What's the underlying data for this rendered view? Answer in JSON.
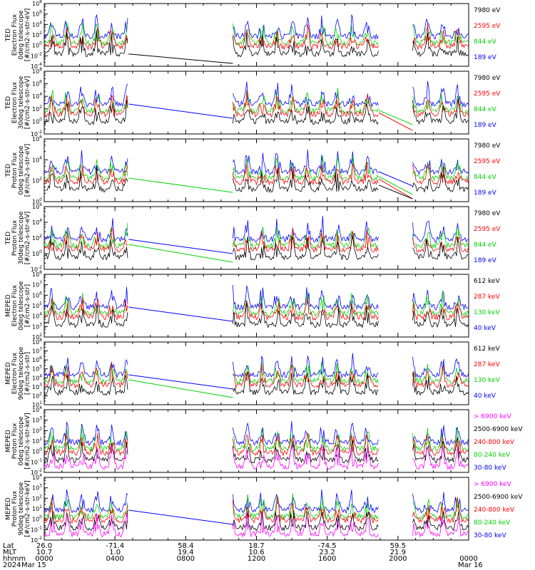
{
  "colors": {
    "black": "#000000",
    "red": "#ff0000",
    "green": "#00d000",
    "blue": "#0000ff",
    "magenta": "#ff00ff"
  },
  "footer": {
    "row_labels": [
      "Lat",
      "MLT",
      "hhmm",
      "2024"
    ],
    "lat": [
      "26.0",
      "-71.4",
      "58.4",
      "18.7",
      "-74.5",
      "59.5"
    ],
    "mlt": [
      "10.7",
      "1.0",
      "19.4",
      "10.6",
      "23.2",
      "21.9"
    ],
    "hhmm": [
      "0000",
      "0400",
      "0800",
      "1200",
      "1600",
      "2000",
      "0000"
    ],
    "dates": [
      "Mar 15",
      "Mar 16"
    ]
  },
  "chart_data": [
    {
      "type": "line",
      "ylabel": [
        "TED",
        "Electron Flux",
        "0deg telescope",
        "[#/cm2-s-str-eV]"
      ],
      "ylog_exponents": [
        -4,
        -2,
        0,
        2,
        4,
        6,
        8
      ],
      "series": [
        {
          "name": "7980 eV",
          "color": "black"
        },
        {
          "name": "2595 eV",
          "color": "red"
        },
        {
          "name": "844 eV",
          "color": "green"
        },
        {
          "name": "189 eV",
          "color": "blue"
        }
      ],
      "gaps": [
        {
          "from": "0446",
          "to": "1040",
          "connect": [
            "black"
          ]
        },
        {
          "from": "1855",
          "to": "2050",
          "connect": []
        }
      ]
    },
    {
      "type": "line",
      "ylabel": [
        "TED",
        "Electron Flux",
        "30deg telescope",
        "[#/cm2-s-str-eV]"
      ],
      "ylog_exponents": [
        -2,
        0,
        2,
        4,
        6,
        8
      ],
      "series": [
        {
          "name": "7980 eV",
          "color": "black"
        },
        {
          "name": "2595 eV",
          "color": "red"
        },
        {
          "name": "844 eV",
          "color": "green"
        },
        {
          "name": "189 eV",
          "color": "blue"
        }
      ],
      "gaps": [
        {
          "from": "0446",
          "to": "1040",
          "connect": [
            "blue"
          ]
        },
        {
          "from": "1855",
          "to": "2050",
          "connect": [
            "green",
            "red"
          ]
        }
      ]
    },
    {
      "type": "line",
      "ylabel": [
        "TED",
        "Proton Flux",
        "0deg telescope",
        "[#/cm2-s-str-eV]"
      ],
      "ylog_exponents": [
        0,
        2,
        4,
        6
      ],
      "series": [
        {
          "name": "7980 eV",
          "color": "black"
        },
        {
          "name": "2595 eV",
          "color": "red"
        },
        {
          "name": "844 eV",
          "color": "green"
        },
        {
          "name": "189 eV",
          "color": "blue"
        }
      ],
      "gaps": [
        {
          "from": "0446",
          "to": "1040",
          "connect": [
            "green"
          ]
        },
        {
          "from": "1855",
          "to": "2050",
          "connect": [
            "blue",
            "green",
            "red",
            "black"
          ]
        }
      ]
    },
    {
      "type": "line",
      "ylabel": [
        "TED",
        "Proton Flux",
        "30deg telescope",
        "[#/cm2-s-str-eV]"
      ],
      "ylog_exponents": [
        -2,
        0,
        2,
        4,
        6
      ],
      "series": [
        {
          "name": "7980 eV",
          "color": "black"
        },
        {
          "name": "2595 eV",
          "color": "red"
        },
        {
          "name": "844 eV",
          "color": "green"
        },
        {
          "name": "189 eV",
          "color": "blue"
        }
      ],
      "gaps": [
        {
          "from": "0446",
          "to": "1040",
          "connect": [
            "blue",
            "green"
          ]
        },
        {
          "from": "1855",
          "to": "2050",
          "connect": []
        }
      ]
    },
    {
      "type": "line",
      "ylabel": [
        "MEPED",
        "Electron Flux",
        "0deg telescope",
        "[#/cm2-s-str]"
      ],
      "ylog_exponents": [
        2,
        3,
        4,
        5,
        6,
        7,
        8
      ],
      "series": [
        {
          "name": "612 keV",
          "color": "black"
        },
        {
          "name": "287 keV",
          "color": "red"
        },
        {
          "name": "130 keV",
          "color": "green"
        },
        {
          "name": "40 keV",
          "color": "blue"
        }
      ],
      "gaps": [
        {
          "from": "0446",
          "to": "1040",
          "connect": [
            "blue"
          ]
        },
        {
          "from": "1855",
          "to": "2050",
          "connect": []
        }
      ]
    },
    {
      "type": "line",
      "ylabel": [
        "MEPED",
        "Electron Flux",
        "90deg telescope",
        "[#/cm2-s-str]"
      ],
      "ylog_exponents": [
        1,
        2,
        3,
        4,
        5,
        6,
        7,
        8
      ],
      "series": [
        {
          "name": "612 keV",
          "color": "black"
        },
        {
          "name": "287 keV",
          "color": "red"
        },
        {
          "name": "130 keV",
          "color": "green"
        },
        {
          "name": "40 keV",
          "color": "blue"
        }
      ],
      "gaps": [
        {
          "from": "0446",
          "to": "1040",
          "connect": [
            "blue",
            "green"
          ]
        },
        {
          "from": "1855",
          "to": "2050",
          "connect": []
        }
      ]
    },
    {
      "type": "line",
      "ylabel": [
        "MEPED",
        "Proton Flux",
        "0deg telescope",
        "[#/cm2-s-str-keV]"
      ],
      "ylog_exponents": [
        -2,
        -1,
        0,
        1,
        2,
        3,
        4
      ],
      "series": [
        {
          "name": "> 6900 keV",
          "color": "magenta"
        },
        {
          "name": "2500-6900 keV",
          "color": "black"
        },
        {
          "name": "240-800 keV",
          "color": "red"
        },
        {
          "name": "80-240 keV",
          "color": "green"
        },
        {
          "name": "30-80 keV",
          "color": "blue"
        }
      ],
      "gaps": [
        {
          "from": "0446",
          "to": "1040",
          "connect": []
        },
        {
          "from": "1855",
          "to": "2050",
          "connect": []
        }
      ]
    },
    {
      "type": "line",
      "ylabel": [
        "MEPED",
        "Proton Flux",
        "90deg telescope",
        "[#/cm2-s-str-keV]"
      ],
      "ylog_exponents": [
        -2,
        -1,
        0,
        1,
        2,
        3,
        4
      ],
      "series": [
        {
          "name": "> 6900 keV",
          "color": "magenta"
        },
        {
          "name": "2500-6900 keV",
          "color": "black"
        },
        {
          "name": "240-800 keV",
          "color": "red"
        },
        {
          "name": "80-240 keV",
          "color": "green"
        },
        {
          "name": "30-80 keV",
          "color": "blue"
        }
      ],
      "gaps": [
        {
          "from": "0446",
          "to": "1040",
          "connect": [
            "blue"
          ]
        },
        {
          "from": "1855",
          "to": "2050",
          "connect": []
        }
      ]
    }
  ]
}
